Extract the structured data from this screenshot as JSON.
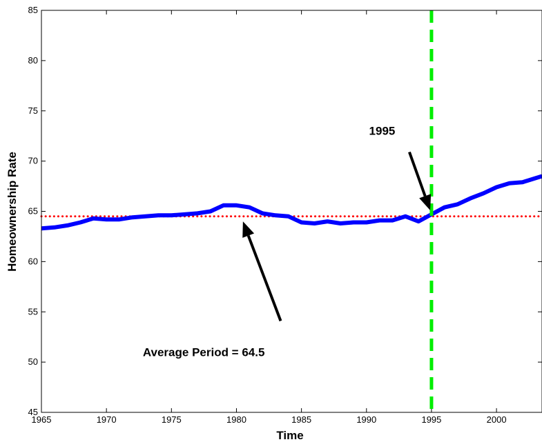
{
  "chart_data": {
    "type": "line",
    "xlabel": "Time",
    "ylabel": "Homeownership Rate",
    "xlim": [
      1965,
      2003.5
    ],
    "ylim": [
      45,
      85
    ],
    "xticks": [
      1965,
      1970,
      1975,
      1980,
      1985,
      1990,
      1995,
      2000
    ],
    "yticks": [
      45,
      50,
      55,
      60,
      65,
      70,
      75,
      80,
      85
    ],
    "grid": false,
    "series": [
      {
        "color": "#0000ff",
        "x": [
          1965,
          1966,
          1967,
          1968,
          1969,
          1970,
          1971,
          1972,
          1973,
          1974,
          1975,
          1976,
          1977,
          1978,
          1979,
          1980,
          1981,
          1982,
          1983,
          1984,
          1985,
          1986,
          1987,
          1988,
          1989,
          1990,
          1991,
          1992,
          1993,
          1994,
          1995,
          1996,
          1997,
          1998,
          1999,
          2000,
          2001,
          2002,
          2003,
          2003.5
        ],
        "values": [
          63.3,
          63.4,
          63.6,
          63.9,
          64.3,
          64.2,
          64.2,
          64.4,
          64.5,
          64.6,
          64.6,
          64.7,
          64.8,
          65.0,
          65.6,
          65.6,
          65.4,
          64.8,
          64.6,
          64.5,
          63.9,
          63.8,
          64.0,
          63.8,
          63.9,
          63.9,
          64.1,
          64.1,
          64.5,
          64.0,
          64.7,
          65.4,
          65.7,
          66.3,
          66.8,
          67.4,
          67.8,
          67.9,
          68.3,
          68.5
        ]
      }
    ],
    "average_line": {
      "value": 64.5,
      "color": "#ff0000",
      "style": "dotted"
    },
    "vertical_marker": {
      "x": 1995,
      "color": "#00ee00",
      "style": "dashed"
    },
    "annotations": [
      {
        "text": "1995",
        "arrow_from": [
          1993.3,
          70.9
        ],
        "arrow_to": [
          1994.9,
          65.1
        ],
        "text_pos": [
          1990.2,
          72.6
        ]
      },
      {
        "text": "Average Period = 64.5",
        "arrow_from": [
          1983.4,
          54.1
        ],
        "arrow_to": [
          1980.5,
          64.0
        ],
        "text_pos": [
          1972.8,
          50.6
        ]
      }
    ]
  }
}
